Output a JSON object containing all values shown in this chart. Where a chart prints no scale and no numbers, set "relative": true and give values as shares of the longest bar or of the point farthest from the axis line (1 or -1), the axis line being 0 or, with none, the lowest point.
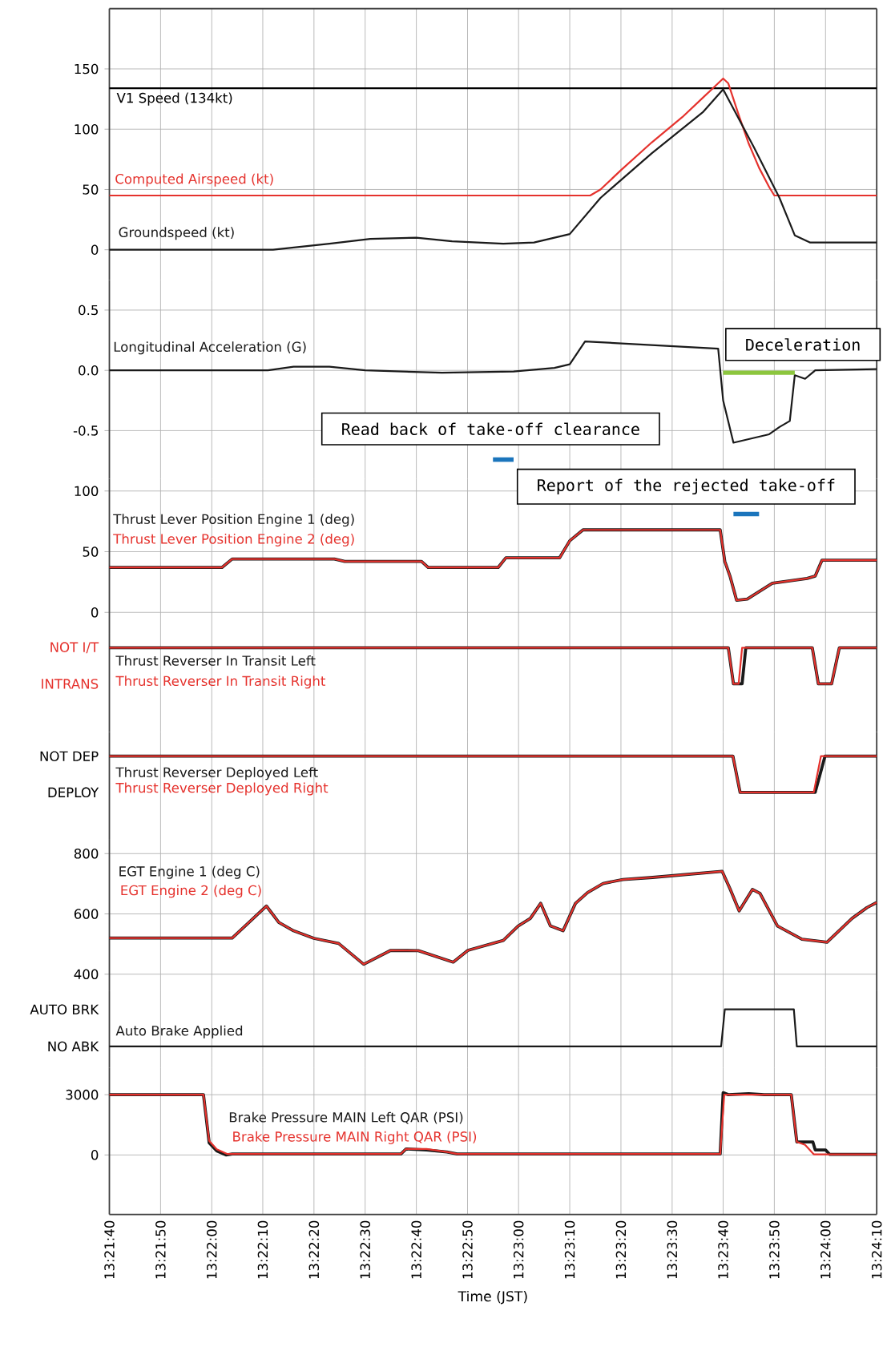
{
  "chart_data": [
    {
      "type": "line",
      "xlim": [
        13.36111,
        13.40278
      ],
      "ylim": [
        -25,
        200
      ],
      "grid": true,
      "tick_labels": "y",
      "xticks": [
        {
          "value": 13.36111,
          "label": null
        },
        {
          "value": 13.36389,
          "label": null
        },
        {
          "value": 13.36667,
          "label": null
        },
        {
          "value": 13.36944,
          "label": null
        },
        {
          "value": 13.37222,
          "label": null
        },
        {
          "value": 13.375,
          "label": null
        },
        {
          "value": 13.37778,
          "label": null
        },
        {
          "value": 13.38056,
          "label": null
        },
        {
          "value": 13.38333,
          "label": null
        },
        {
          "value": 13.38611,
          "label": null
        },
        {
          "value": 13.38889,
          "label": null
        },
        {
          "value": 13.39167,
          "label": null
        },
        {
          "value": 13.39444,
          "label": null
        },
        {
          "value": 13.39722,
          "label": null
        },
        {
          "value": 13.4,
          "label": null
        },
        {
          "value": 13.40278,
          "label": null
        }
      ],
      "yticks": [
        0,
        50,
        100,
        150
      ],
      "ref_lines": [
        {
          "axis": "y",
          "value": 134,
          "label": "V1 Speed (134kt)"
        }
      ],
      "series": [
        {
          "name": "Computed Airspeed (kt)",
          "color": "#e5322d",
          "x": [
            13.36111,
            13.38722,
            13.38778,
            13.38889,
            13.39056,
            13.39222,
            13.39333,
            13.39389,
            13.39444,
            13.39472,
            13.39528,
            13.39583,
            13.39639,
            13.39694,
            13.39722,
            13.40278
          ],
          "values": [
            45,
            45,
            50,
            66,
            89,
            110,
            126,
            134,
            142,
            138,
            112,
            88,
            68,
            52,
            45,
            45
          ]
        },
        {
          "name": "Groundspeed (kt)",
          "color": "#1a1a1a",
          "x": [
            13.36111,
            13.37,
            13.37306,
            13.37528,
            13.37778,
            13.37972,
            13.3825,
            13.38417,
            13.38611,
            13.38778,
            13.39056,
            13.39333,
            13.39444,
            13.39611,
            13.3975,
            13.39833,
            13.39917,
            13.40278
          ],
          "values": [
            0,
            0,
            5,
            9,
            10,
            7,
            5,
            6,
            13,
            43,
            80,
            114,
            133,
            85,
            43,
            12,
            6,
            6
          ]
        }
      ]
    },
    {
      "type": "line",
      "xlim": [
        13.36111,
        13.40278
      ],
      "ylim": [
        -0.9,
        0.75
      ],
      "grid": true,
      "tick_labels": "y",
      "xticks": [
        {
          "value": 13.36111,
          "label": null
        },
        {
          "value": 13.36389,
          "label": null
        },
        {
          "value": 13.36667,
          "label": null
        },
        {
          "value": 13.36944,
          "label": null
        },
        {
          "value": 13.37222,
          "label": null
        },
        {
          "value": 13.375,
          "label": null
        },
        {
          "value": 13.37778,
          "label": null
        },
        {
          "value": 13.38056,
          "label": null
        },
        {
          "value": 13.38333,
          "label": null
        },
        {
          "value": 13.38611,
          "label": null
        },
        {
          "value": 13.38889,
          "label": null
        },
        {
          "value": 13.39167,
          "label": null
        },
        {
          "value": 13.39444,
          "label": null
        },
        {
          "value": 13.39722,
          "label": null
        },
        {
          "value": 13.4,
          "label": null
        },
        {
          "value": 13.40278,
          "label": null
        }
      ],
      "yticks": [
        -0.5,
        {
          "value": 0,
          "label": "0.0"
        },
        0.5
      ],
      "annotations": [
        "Read back of take-off clearance",
        "Deceleration"
      ],
      "series": [
        {
          "name": "Longitudinal Acceleration (G)",
          "color": "#1a1a1a",
          "x": [
            13.36111,
            13.36972,
            13.37111,
            13.37306,
            13.375,
            13.37917,
            13.38306,
            13.38528,
            13.38611,
            13.38694,
            13.39417,
            13.39444,
            13.395,
            13.39583,
            13.39694,
            13.3975,
            13.39806,
            13.39833,
            13.39889,
            13.39944,
            13.40278
          ],
          "values": [
            0,
            0,
            0.03,
            0.03,
            0,
            -0.02,
            -0.01,
            0.02,
            0.05,
            0.24,
            0.18,
            -0.25,
            -0.6,
            -0.57,
            -0.53,
            -0.47,
            -0.42,
            -0.04,
            -0.07,
            0,
            0.01
          ]
        },
        {
          "color": "#1b75bc",
          "x": [
            13.38194,
            13.38306
          ],
          "values": [
            -0.74,
            -0.74
          ]
        },
        {
          "color": "#8cc63e",
          "x": [
            13.39444,
            13.39833
          ],
          "values": [
            -0.02,
            -0.02
          ]
        }
      ]
    },
    {
      "type": "line",
      "xlim": [
        13.36111,
        13.40278
      ],
      "ylim": [
        -17,
        110
      ],
      "grid": true,
      "tick_labels": "y",
      "xticks": [
        {
          "value": 13.36111,
          "label": null
        },
        {
          "value": 13.36389,
          "label": null
        },
        {
          "value": 13.36667,
          "label": null
        },
        {
          "value": 13.36944,
          "label": null
        },
        {
          "value": 13.37222,
          "label": null
        },
        {
          "value": 13.375,
          "label": null
        },
        {
          "value": 13.37778,
          "label": null
        },
        {
          "value": 13.38056,
          "label": null
        },
        {
          "value": 13.38333,
          "label": null
        },
        {
          "value": 13.38611,
          "label": null
        },
        {
          "value": 13.38889,
          "label": null
        },
        {
          "value": 13.39167,
          "label": null
        },
        {
          "value": 13.39444,
          "label": null
        },
        {
          "value": 13.39722,
          "label": null
        },
        {
          "value": 13.4,
          "label": null
        },
        {
          "value": 13.40278,
          "label": null
        }
      ],
      "yticks": [
        0,
        50,
        100
      ],
      "annotations": [
        "Report of the rejected take-off"
      ],
      "series": [
        {
          "name": "Thrust Lever Position Engine 1 (deg)",
          "color": "#1a1a1a",
          "x": [
            13.36111,
            13.36722,
            13.36778,
            13.37333,
            13.37389,
            13.37806,
            13.37842,
            13.38222,
            13.38264,
            13.38556,
            13.38611,
            13.38683,
            13.39428,
            13.39453,
            13.39481,
            13.39517,
            13.39575,
            13.39711,
            13.399,
            13.39944,
            13.39981,
            13.40278
          ],
          "values": [
            37,
            37,
            44,
            44,
            42,
            42,
            37,
            37,
            45,
            45,
            59,
            68,
            68,
            42,
            30,
            10,
            11,
            24,
            28,
            30,
            43,
            43
          ]
        },
        {
          "name": "Thrust Lever Position Engine 2 (deg)",
          "color": "#e5322d",
          "x": [
            13.36111,
            13.36722,
            13.36778,
            13.37333,
            13.37389,
            13.37806,
            13.37842,
            13.38222,
            13.38264,
            13.38556,
            13.38611,
            13.38683,
            13.39428,
            13.39453,
            13.39481,
            13.39517,
            13.39575,
            13.39711,
            13.399,
            13.39944,
            13.39981,
            13.40278
          ],
          "values": [
            37,
            37,
            44,
            44,
            42,
            42,
            37,
            37,
            45,
            45,
            59,
            68,
            68,
            42,
            30,
            10,
            11,
            24,
            28,
            30,
            43,
            43
          ]
        },
        {
          "color": "#1b75bc",
          "x": [
            13.395,
            13.39639
          ],
          "values": [
            81,
            81
          ]
        }
      ]
    },
    {
      "type": "line",
      "xlim": [
        13.36111,
        13.40278
      ],
      "relative": true,
      "grid": true,
      "tick_labels": "y",
      "annotations": [
        "NOT I/T",
        "INTRANS"
      ],
      "xticks": [
        {
          "value": 13.36111,
          "label": null
        },
        {
          "value": 13.36389,
          "label": null
        },
        {
          "value": 13.36667,
          "label": null
        },
        {
          "value": 13.36944,
          "label": null
        },
        {
          "value": 13.37222,
          "label": null
        },
        {
          "value": 13.375,
          "label": null
        },
        {
          "value": 13.37778,
          "label": null
        },
        {
          "value": 13.38056,
          "label": null
        },
        {
          "value": 13.38333,
          "label": null
        },
        {
          "value": 13.38611,
          "label": null
        },
        {
          "value": 13.38889,
          "label": null
        },
        {
          "value": 13.39167,
          "label": null
        },
        {
          "value": 13.39444,
          "label": null
        },
        {
          "value": 13.39722,
          "label": null
        },
        {
          "value": 13.4,
          "label": null
        },
        {
          "value": 13.40278,
          "label": null
        }
      ],
      "series": [
        {
          "name": "Thrust Reverser In Transit Left",
          "color": "#1a1a1a",
          "x": [
            13.36111,
            13.39472,
            13.395,
            13.39547,
            13.39567,
            13.39928,
            13.39961,
            13.40033,
            13.40075,
            13.40278
          ],
          "values": [
            1,
            1,
            0,
            0,
            1,
            1,
            0,
            0,
            1,
            1
          ]
        },
        {
          "name": "Thrust Reverser In Transit Right",
          "color": "#e5322d",
          "x": [
            13.36111,
            13.39472,
            13.395,
            13.39528,
            13.39547,
            13.39928,
            13.39961,
            13.40033,
            13.40075,
            13.40278
          ],
          "values": [
            1,
            1,
            0,
            0,
            1,
            1,
            0,
            0,
            1,
            1
          ]
        }
      ]
    },
    {
      "type": "line",
      "xlim": [
        13.36111,
        13.40278
      ],
      "relative": true,
      "grid": true,
      "tick_labels": "y",
      "annotations": [
        "NOT DEP",
        "DEPLOY"
      ],
      "xticks": [
        {
          "value": 13.36111,
          "label": null
        },
        {
          "value": 13.36389,
          "label": null
        },
        {
          "value": 13.36667,
          "label": null
        },
        {
          "value": 13.36944,
          "label": null
        },
        {
          "value": 13.37222,
          "label": null
        },
        {
          "value": 13.375,
          "label": null
        },
        {
          "value": 13.37778,
          "label": null
        },
        {
          "value": 13.38056,
          "label": null
        },
        {
          "value": 13.38333,
          "label": null
        },
        {
          "value": 13.38611,
          "label": null
        },
        {
          "value": 13.38889,
          "label": null
        },
        {
          "value": 13.39167,
          "label": null
        },
        {
          "value": 13.39444,
          "label": null
        },
        {
          "value": 13.39722,
          "label": null
        },
        {
          "value": 13.4,
          "label": null
        },
        {
          "value": 13.40278,
          "label": null
        }
      ],
      "series": [
        {
          "name": "Thrust Reverser Deployed Left",
          "color": "#1a1a1a",
          "x": [
            13.36111,
            13.39497,
            13.39536,
            13.39944,
            13.39997,
            13.40278
          ],
          "values": [
            1,
            1,
            0,
            0,
            1,
            1
          ]
        },
        {
          "name": "Thrust Reverser Deployed Right",
          "color": "#e5322d",
          "x": [
            13.36111,
            13.39497,
            13.39536,
            13.39936,
            13.39975,
            13.40278
          ],
          "values": [
            1,
            1,
            0,
            0,
            1,
            1
          ]
        }
      ]
    },
    {
      "type": "line",
      "xlim": [
        13.36111,
        13.40278
      ],
      "ylim": [
        346,
        846
      ],
      "grid": true,
      "tick_labels": "y",
      "xticks": [
        {
          "value": 13.36111,
          "label": null
        },
        {
          "value": 13.36389,
          "label": null
        },
        {
          "value": 13.36667,
          "label": null
        },
        {
          "value": 13.36944,
          "label": null
        },
        {
          "value": 13.37222,
          "label": null
        },
        {
          "value": 13.375,
          "label": null
        },
        {
          "value": 13.37778,
          "label": null
        },
        {
          "value": 13.38056,
          "label": null
        },
        {
          "value": 13.38333,
          "label": null
        },
        {
          "value": 13.38611,
          "label": null
        },
        {
          "value": 13.38889,
          "label": null
        },
        {
          "value": 13.39167,
          "label": null
        },
        {
          "value": 13.39444,
          "label": null
        },
        {
          "value": 13.39722,
          "label": null
        },
        {
          "value": 13.4,
          "label": null
        },
        {
          "value": 13.40278,
          "label": null
        }
      ],
      "yticks": [
        400,
        600,
        800
      ],
      "series": [
        {
          "name": "EGT Engine 1 (deg C)",
          "color": "#1a1a1a",
          "x": [
            13.36111,
            13.36778,
            13.36869,
            13.36964,
            13.37031,
            13.37111,
            13.37222,
            13.37356,
            13.37492,
            13.37639,
            13.37789,
            13.37978,
            13.38058,
            13.3825,
            13.38331,
            13.38397,
            13.38453,
            13.38506,
            13.38575,
            13.38642,
            13.38708,
            13.38792,
            13.389,
            13.39061,
            13.39439,
            13.39481,
            13.39531,
            13.39603,
            13.39644,
            13.39739,
            13.39872,
            13.40008,
            13.40144,
            13.40225,
            13.40278
          ],
          "values": [
            520,
            520,
            572,
            626,
            572,
            544,
            519,
            502,
            433,
            479,
            478,
            440,
            479,
            512,
            560,
            585,
            635,
            560,
            544,
            635,
            671,
            701,
            714,
            721,
            741,
            684,
            610,
            681,
            668,
            560,
            516,
            506,
            585,
            621,
            638
          ]
        },
        {
          "name": "EGT Engine 2 (deg C)",
          "color": "#e5322d",
          "x": [
            13.36111,
            13.36778,
            13.36869,
            13.36964,
            13.37031,
            13.37111,
            13.37222,
            13.37356,
            13.37492,
            13.37639,
            13.37789,
            13.37978,
            13.38058,
            13.3825,
            13.38331,
            13.38397,
            13.38453,
            13.38506,
            13.38575,
            13.38642,
            13.38708,
            13.38792,
            13.389,
            13.39061,
            13.39439,
            13.39481,
            13.39531,
            13.39603,
            13.39644,
            13.39739,
            13.39872,
            13.40008,
            13.40144,
            13.40225,
            13.40278
          ],
          "values": [
            520,
            520,
            572,
            626,
            572,
            544,
            519,
            502,
            433,
            479,
            478,
            440,
            479,
            512,
            560,
            585,
            635,
            560,
            544,
            635,
            671,
            701,
            714,
            721,
            741,
            684,
            610,
            681,
            668,
            560,
            516,
            506,
            585,
            621,
            638
          ]
        }
      ]
    },
    {
      "type": "line",
      "xlim": [
        13.36111,
        13.40278
      ],
      "relative": true,
      "grid": true,
      "tick_labels": "y",
      "annotations": [
        "AUTO BRK",
        "NO ABK"
      ],
      "xticks": [
        {
          "value": 13.36111,
          "label": null
        },
        {
          "value": 13.36389,
          "label": null
        },
        {
          "value": 13.36667,
          "label": null
        },
        {
          "value": 13.36944,
          "label": null
        },
        {
          "value": 13.37222,
          "label": null
        },
        {
          "value": 13.375,
          "label": null
        },
        {
          "value": 13.37778,
          "label": null
        },
        {
          "value": 13.38056,
          "label": null
        },
        {
          "value": 13.38333,
          "label": null
        },
        {
          "value": 13.38611,
          "label": null
        },
        {
          "value": 13.38889,
          "label": null
        },
        {
          "value": 13.39167,
          "label": null
        },
        {
          "value": 13.39444,
          "label": null
        },
        {
          "value": 13.39722,
          "label": null
        },
        {
          "value": 13.4,
          "label": null
        },
        {
          "value": 13.40278,
          "label": null
        }
      ],
      "series": [
        {
          "name": "Auto Brake Applied",
          "color": "#1a1a1a",
          "x": [
            13.36111,
            13.39433,
            13.39453,
            13.39828,
            13.39844,
            13.40278
          ],
          "values": [
            0,
            0,
            1,
            1,
            0,
            0
          ]
        }
      ]
    },
    {
      "type": "line",
      "xlim": [
        13.36111,
        13.40278
      ],
      "ylim": [
        -2960,
        4330
      ],
      "grid": true,
      "xlabel": "Time (JST)",
      "xticks": [
        {
          "value": 13.36111,
          "label": "13:21:40"
        },
        {
          "value": 13.36389,
          "label": "13:21:50"
        },
        {
          "value": 13.36667,
          "label": "13:22:00"
        },
        {
          "value": 13.36944,
          "label": "13:22:10"
        },
        {
          "value": 13.37222,
          "label": "13:22:20"
        },
        {
          "value": 13.375,
          "label": "13:22:30"
        },
        {
          "value": 13.37778,
          "label": "13:22:40"
        },
        {
          "value": 13.38056,
          "label": "13:22:50"
        },
        {
          "value": 13.38333,
          "label": "13:23:00"
        },
        {
          "value": 13.38611,
          "label": "13:23:10"
        },
        {
          "value": 13.38889,
          "label": "13:23:20"
        },
        {
          "value": 13.39167,
          "label": "13:23:30"
        },
        {
          "value": 13.39444,
          "label": "13:23:40"
        },
        {
          "value": 13.39722,
          "label": "13:23:50"
        },
        {
          "value": 13.4,
          "label": "13:24:00"
        },
        {
          "value": 13.40278,
          "label": "13:24:10"
        }
      ],
      "yticks": [
        0,
        3000
      ],
      "series": [
        {
          "name": "Brake Pressure MAIN Left QAR (PSI)",
          "color": "#1a1a1a",
          "x": [
            13.36111,
            13.36622,
            13.36653,
            13.36694,
            13.36744,
            13.36778,
            13.37694,
            13.37722,
            13.37833,
            13.37944,
            13.38,
            13.39428,
            13.39444,
            13.39472,
            13.39583,
            13.39667,
            13.39814,
            13.39844,
            13.39931,
            13.39944,
            13.4,
            13.40022,
            13.40278
          ],
          "values": [
            3000,
            3000,
            600,
            200,
            0,
            50,
            50,
            300,
            250,
            150,
            50,
            50,
            3100,
            3000,
            3050,
            3000,
            3000,
            650,
            650,
            250,
            250,
            30,
            30
          ]
        },
        {
          "name": "Brake Pressure MAIN Right QAR (PSI)",
          "color": "#e5322d",
          "x": [
            13.36111,
            13.36622,
            13.36653,
            13.36694,
            13.3675,
            13.37694,
            13.37722,
            13.37833,
            13.37944,
            13.38,
            13.39428,
            13.3945,
            13.39814,
            13.39844,
            13.39889,
            13.39936,
            13.40278
          ],
          "values": [
            3000,
            3000,
            700,
            280,
            50,
            50,
            300,
            300,
            150,
            50,
            50,
            3000,
            3000,
            650,
            500,
            30,
            30
          ]
        }
      ]
    }
  ]
}
